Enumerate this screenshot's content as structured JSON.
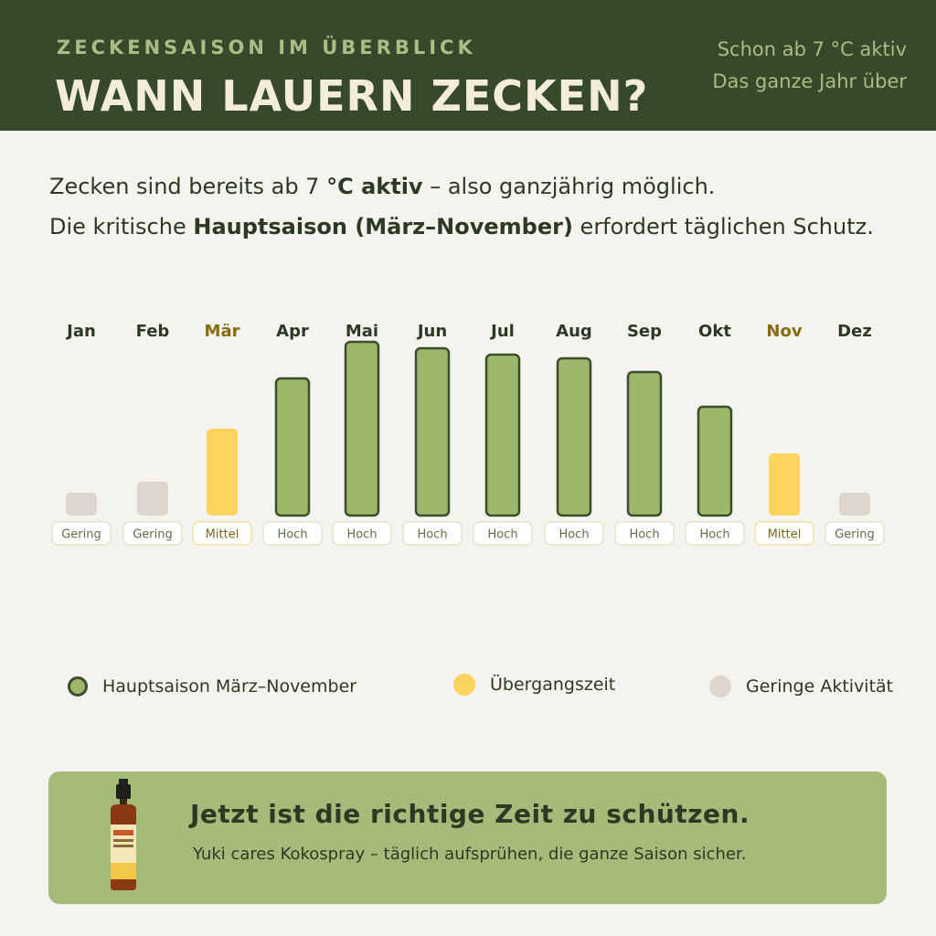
{
  "header": {
    "kicker": "ZECKENSAISON IM ÜBERBLICK",
    "headline": "WANN LAUERN ZECKEN?",
    "tagline_1": "Schon ab 7 °C aktiv",
    "tagline_2": "Das ganze Jahr über"
  },
  "intro": {
    "line1_a": "Zecken sind bereits ab 7 ",
    "line1_b": "°C aktiv",
    "line1_c": " – also ganzjährig möglich.",
    "line2_a": "Die kritische ",
    "line2_b": "Hauptsaison (März–November)",
    "line2_c": " erfordert täglichen Schutz."
  },
  "colors": {
    "header_bg": "#37492b",
    "hoch": "#9cb76a",
    "hoch_border": "#3a4d2c",
    "mittel": "#fcd35c",
    "gering": "#dcd6cc",
    "accent_month": "#8a6a10",
    "cta_bg": "#a4bb79"
  },
  "chart_data": {
    "type": "bar",
    "categories": [
      "Jan",
      "Feb",
      "Mär",
      "Apr",
      "Mai",
      "Jun",
      "Jul",
      "Aug",
      "Sep",
      "Okt",
      "Nov",
      "Dez"
    ],
    "values": [
      25,
      37,
      95,
      150,
      190,
      183,
      176,
      172,
      157,
      119,
      68,
      25
    ],
    "levels": [
      "Gering",
      "Gering",
      "Mittel",
      "Hoch",
      "Hoch",
      "Hoch",
      "Hoch",
      "Hoch",
      "Hoch",
      "Hoch",
      "Mittel",
      "Gering"
    ],
    "highlighted_months": [
      "Mär",
      "Nov"
    ],
    "title": "",
    "xlabel": "",
    "ylabel": "",
    "ylim": [
      0,
      200
    ]
  },
  "legend": [
    {
      "label": "Hauptsaison März–November",
      "color": "#9cb76a"
    },
    {
      "label": "Übergangszeit",
      "color": "#fcd35c"
    },
    {
      "label": "Geringe Aktivität",
      "color": "#dcd6cc"
    }
  ],
  "cta": {
    "title": "Jetzt ist die richtige Zeit zu schützen.",
    "subtitle": "Yuki cares Kokospray – täglich aufsprühen, die ganze Saison sicher."
  }
}
